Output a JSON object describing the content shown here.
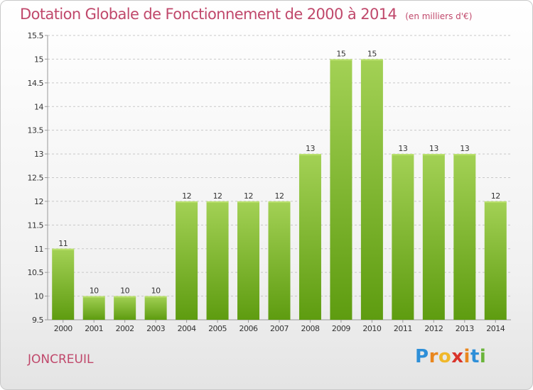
{
  "header": {
    "title": "Dotation Globale de Fonctionnement de 2000 à 2014",
    "unit": "(en milliers d'€)"
  },
  "footer": {
    "commune": "JONCREUIL",
    "logo": {
      "text": "Proxiti",
      "letter_colors": [
        "#2e8fd8",
        "#e9861d",
        "#f0b82b",
        "#d9342b",
        "#e9861d",
        "#2e8fd8",
        "#6ab43a"
      ]
    }
  },
  "colors": {
    "title": "#c0486b",
    "bar_top": "#a3d155",
    "bar_bottom": "#5e9c10",
    "grid": "#c8c8c8",
    "axis_text": "#333333"
  },
  "chart_data": {
    "type": "bar",
    "title": "Dotation Globale de Fonctionnement de 2000 à 2014",
    "subtitle": "(en milliers d'€)",
    "xlabel": "",
    "ylabel": "",
    "categories": [
      "2000",
      "2001",
      "2002",
      "2003",
      "2004",
      "2005",
      "2006",
      "2007",
      "2008",
      "2009",
      "2010",
      "2011",
      "2012",
      "2013",
      "2014"
    ],
    "values": [
      11,
      10,
      10,
      10,
      12,
      12,
      12,
      12,
      13,
      15,
      15,
      13,
      13,
      13,
      12
    ],
    "value_labels": [
      "11",
      "10",
      "10",
      "10",
      "12",
      "12",
      "12",
      "12",
      "13",
      "15",
      "15",
      "13",
      "13",
      "13",
      "12"
    ],
    "ylim": [
      9.5,
      15.5
    ],
    "yticks": [
      9.5,
      10,
      10.5,
      11,
      11.5,
      12,
      12.5,
      13,
      13.5,
      14,
      14.5,
      15,
      15.5
    ],
    "ytick_labels": [
      "9.5",
      "10",
      "10.5",
      "11",
      "11.5",
      "12",
      "12.5",
      "13",
      "13.5",
      "14",
      "14.5",
      "15",
      "15.5"
    ],
    "grid": true,
    "grid_style": "dashed-horizontal",
    "legend": "none"
  }
}
